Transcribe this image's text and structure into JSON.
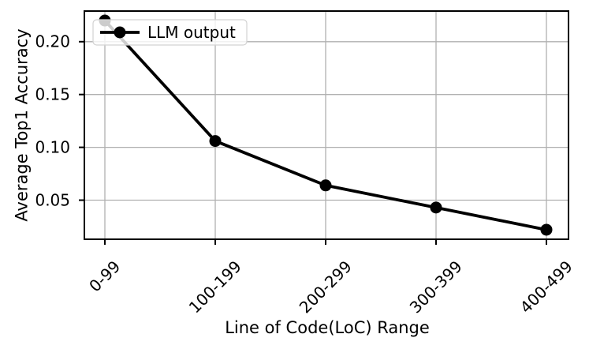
{
  "chart_data": {
    "type": "line",
    "categories": [
      "0-99",
      "100-199",
      "200-299",
      "300-399",
      "400-499"
    ],
    "series": [
      {
        "name": "LLM output",
        "values": [
          0.22,
          0.106,
          0.064,
          0.043,
          0.022
        ],
        "color": "#000000",
        "marker": "circle"
      }
    ],
    "title": "",
    "xlabel": "Line of Code(LoC) Range",
    "ylabel": "Average Top1 Accuracy",
    "ylim": [
      0.013,
      0.229
    ],
    "yticks": {
      "values": [
        0.05,
        0.1,
        0.15,
        0.2
      ],
      "labels": [
        "0.05",
        "0.10",
        "0.15",
        "0.20"
      ]
    },
    "xtick_rotation_deg": 45,
    "grid": true,
    "legend": {
      "position": "upper left",
      "entries": [
        "LLM output"
      ]
    },
    "style": {
      "line_color": "#000000",
      "marker_color": "#000000",
      "grid_color": "#b0b0b0",
      "spine_color": "#000000",
      "background": "#ffffff",
      "legend_border": "#d2d2d2",
      "legend_fill": "rgba(255,255,255,0.8)"
    }
  }
}
